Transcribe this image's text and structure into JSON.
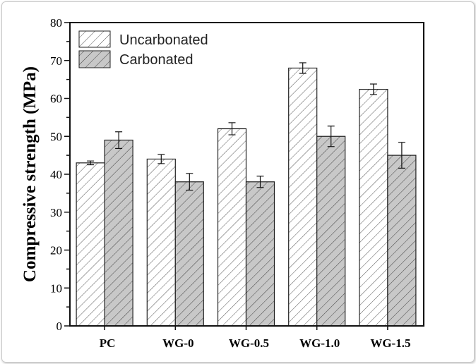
{
  "chart_data": {
    "type": "bar",
    "title": "",
    "xlabel": "",
    "ylabel": "Compressive strength (MPa)",
    "ylim": [
      0,
      80
    ],
    "yticks": [
      0,
      10,
      20,
      30,
      40,
      50,
      60,
      70,
      80
    ],
    "categories": [
      "PC",
      "WG-0",
      "WG-0.5",
      "WG-1.0",
      "WG-1.5"
    ],
    "legend_position": "top-left",
    "grid": false,
    "series": [
      {
        "name": "Uncarbonated",
        "values": [
          43,
          44,
          52,
          68,
          62.4
        ],
        "errors": [
          0.5,
          1.2,
          1.6,
          1.4,
          1.4
        ],
        "fill": "#ffffff",
        "hatch": "#444444"
      },
      {
        "name": "Carbonated",
        "values": [
          49,
          38,
          38,
          50,
          45
        ],
        "errors": [
          2.2,
          2.2,
          1.5,
          2.7,
          3.4
        ],
        "fill": "#c8c8c8",
        "hatch": "#444444"
      }
    ]
  }
}
